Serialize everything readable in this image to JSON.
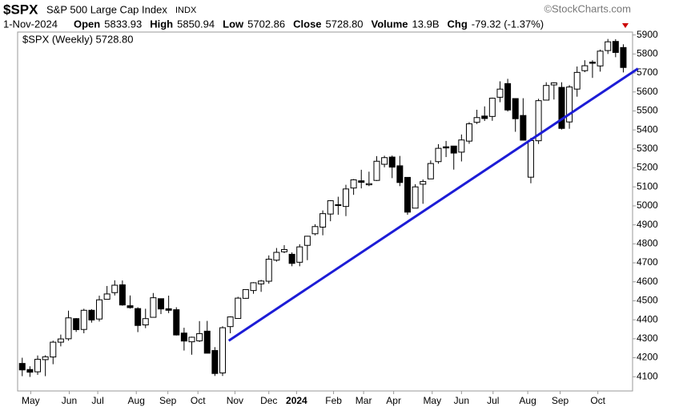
{
  "chart_data": {
    "type": "candlestick",
    "symbol": "$SPX",
    "name": "S&P 500 Large Cap Index",
    "exchange": "INDX",
    "source": "©StockCharts.com",
    "date": "1-Nov-2024",
    "stats": [
      {
        "label": "Open",
        "value": "5833.93"
      },
      {
        "label": "High",
        "value": "5850.94"
      },
      {
        "label": "Low",
        "value": "5702.86"
      },
      {
        "label": "Close",
        "value": "5728.80"
      },
      {
        "label": "Volume",
        "value": "13.9B"
      },
      {
        "label": "Chg",
        "value": "-79.32 (-1.37%)"
      }
    ],
    "legend": "$SPX (Weekly) 5728.80",
    "open": [
      4170,
      4138,
      4126,
      4190,
      4204,
      4282,
      4300,
      4406,
      4349,
      4450,
      4404,
      4508,
      4543,
      4584,
      4474,
      4459,
      4373,
      4413,
      4511,
      4458,
      4453,
      4330,
      4284,
      4289,
      4340,
      4238,
      4120,
      4364,
      4407,
      4513,
      4554,
      4589,
      4603,
      4714,
      4758,
      4745,
      4703,
      4792,
      4853,
      4888,
      4957,
      5004,
      4997,
      5094,
      5132,
      5111,
      5134,
      5219,
      5257,
      5211,
      5150,
      4988,
      5114,
      5142,
      5233,
      5311,
      5315,
      5283,
      5341,
      5440,
      5473,
      5471,
      5572,
      5644,
      5565,
      5476,
      5151,
      5343,
      5557,
      5637,
      5624,
      5442,
      5615,
      5712,
      5757,
      5737,
      5818,
      5866,
      5833.93
    ],
    "high": [
      4200,
      4155,
      4212,
      4213,
      4290,
      4322,
      4448,
      4409,
      4458,
      4456,
      4527,
      4578,
      4608,
      4607,
      4528,
      4466,
      4458,
      4541,
      4511,
      4527,
      4466,
      4358,
      4311,
      4393,
      4394,
      4256,
      4366,
      4418,
      4521,
      4560,
      4598,
      4610,
      4739,
      4778,
      4793,
      4755,
      4798,
      4842,
      4903,
      4976,
      5030,
      5048,
      5111,
      5141,
      5190,
      5180,
      5262,
      5264,
      5265,
      5263,
      5151,
      5114,
      5139,
      5239,
      5325,
      5342,
      5316,
      5376,
      5441,
      5506,
      5524,
      5570,
      5656,
      5669,
      5566,
      5567,
      5358,
      5564,
      5651,
      5651,
      5651,
      5636,
      5734,
      5767,
      5767,
      5823,
      5879,
      5878,
      5850.94
    ],
    "low": [
      4103,
      4099,
      4110,
      4103,
      4166,
      4260,
      4290,
      4336,
      4329,
      4385,
      4391,
      4506,
      4528,
      4474,
      4459,
      4335,
      4356,
      4413,
      4430,
      4435,
      4317,
      4238,
      4216,
      4283,
      4223,
      4104,
      4104,
      4329,
      4407,
      4511,
      4537,
      4547,
      4590,
      4706,
      4751,
      4682,
      4682,
      4714,
      4845,
      4845,
      4919,
      4953,
      4946,
      5058,
      5092,
      5104,
      5131,
      5203,
      5146,
      5104,
      4953,
      4988,
      5011,
      5142,
      5222,
      5257,
      5191,
      5234,
      5327,
      5431,
      5447,
      5448,
      5546,
      5497,
      5390,
      5344,
      5119,
      5326,
      5557,
      5560,
      5402,
      5406,
      5575,
      5704,
      5674,
      5707,
      5800,
      5783,
      5702.86
    ],
    "close": [
      4136,
      4124,
      4192,
      4205,
      4282,
      4299,
      4410,
      4348,
      4450,
      4399,
      4505,
      4536,
      4582,
      4478,
      4464,
      4370,
      4406,
      4516,
      4457,
      4450,
      4320,
      4288,
      4308,
      4327,
      4224,
      4117,
      4358,
      4415,
      4514,
      4559,
      4595,
      4604,
      4719,
      4755,
      4770,
      4697,
      4784,
      4840,
      4891,
      4959,
      5027,
      5006,
      5089,
      5137,
      5124,
      5117,
      5235,
      5254,
      5204,
      5123,
      4967,
      5100,
      5128,
      5223,
      5303,
      5305,
      5278,
      5347,
      5432,
      5465,
      5460,
      5567,
      5615,
      5505,
      5459,
      5346,
      5344,
      5554,
      5634,
      5648,
      5408,
      5626,
      5703,
      5738,
      5751,
      5815,
      5864,
      5808,
      5728.8
    ],
    "xlim": [
      -0.6,
      79.2
    ],
    "xticks": [
      {
        "value": 1.1,
        "label": "May"
      },
      {
        "value": 6.1,
        "label": "Jun"
      },
      {
        "value": 9.8,
        "label": "Jul"
      },
      {
        "value": 14.8,
        "label": "Aug"
      },
      {
        "value": 18.9,
        "label": "Sep"
      },
      {
        "value": 22.8,
        "label": "Oct"
      },
      {
        "value": 27.6,
        "label": "Nov"
      },
      {
        "value": 32,
        "label": "Dec"
      },
      {
        "value": 35.6,
        "label": "2024"
      },
      {
        "value": 40.4,
        "label": "Feb"
      },
      {
        "value": 44.3,
        "label": "Mar"
      },
      {
        "value": 48.2,
        "label": "Apr"
      },
      {
        "value": 53.2,
        "label": "May"
      },
      {
        "value": 57,
        "label": "Jun"
      },
      {
        "value": 61.1,
        "label": "Jul"
      },
      {
        "value": 65.6,
        "label": "Aug"
      },
      {
        "value": 69.8,
        "label": "Sep"
      },
      {
        "value": 74.7,
        "label": "Oct"
      }
    ],
    "ylim": [
      4025,
      5945
    ],
    "yticks": [
      4100,
      4200,
      4300,
      4400,
      4500,
      4600,
      4700,
      4800,
      4900,
      5000,
      5100,
      5200,
      5300,
      5400,
      5500,
      5600,
      5700,
      5800,
      5900
    ],
    "up_color": "#ffffff",
    "down_color": "#000000",
    "trendline": {
      "color": "#1c1cd6",
      "x": [
        26.8,
        79.9
      ],
      "y": [
        4290,
        5723
      ]
    }
  }
}
